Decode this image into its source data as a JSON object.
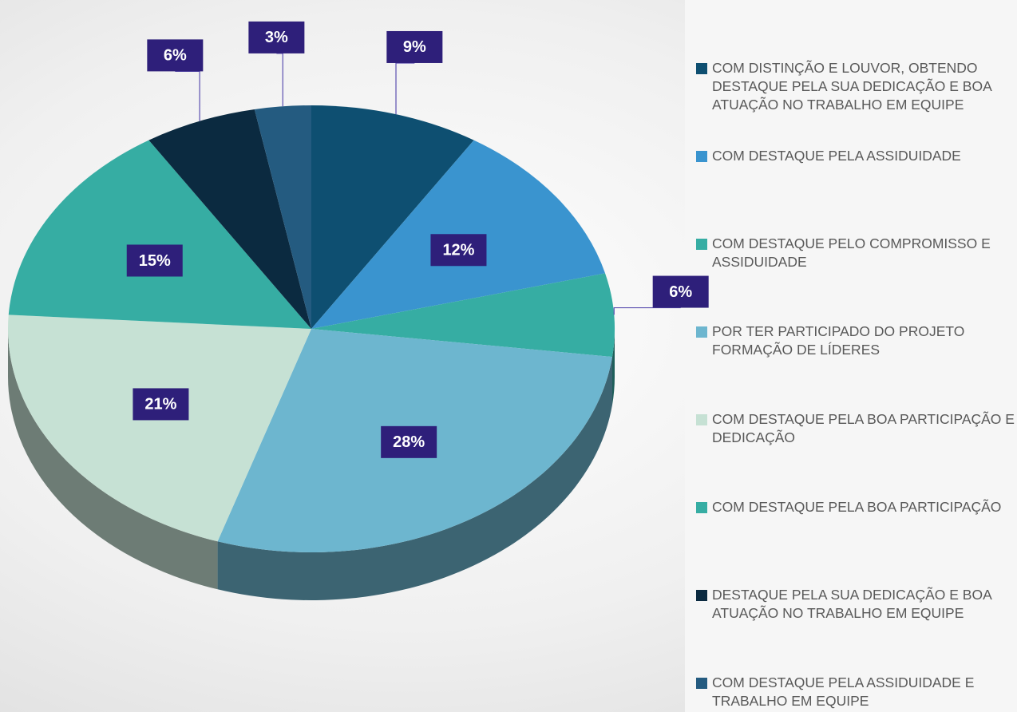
{
  "chart_data": {
    "type": "pie",
    "categories": [
      "COM DISTINÇÃO E LOUVOR, OBTENDO DESTAQUE PELA SUA DEDICAÇÃO E BOA ATUAÇÃO NO TRABALHO EM EQUIPE",
      "COM DESTAQUE PELA ASSIDUIDADE",
      "COM DESTAQUE PELO COMPROMISSO E ASSIDUIDADE",
      "POR TER PARTICIPADO DO PROJETO FORMAÇÃO DE LÍDERES",
      "COM DESTAQUE PELA BOA PARTICIPAÇÃO E DEDICAÇÃO",
      "COM DESTAQUE PELA BOA PARTICIPAÇÃO",
      "DESTAQUE PELA SUA DEDICAÇÃO E BOA ATUAÇÃO NO TRABALHO EM EQUIPE",
      "COM DESTAQUE PELA ASSIDUIDADE E TRABALHO EM EQUIPE"
    ],
    "values": [
      9,
      12,
      6,
      28,
      21,
      15,
      6,
      3
    ],
    "value_labels": [
      "9%",
      "12%",
      "6%",
      "28%",
      "21%",
      "15%",
      "6%",
      "3%"
    ],
    "colors": [
      "#0e4f71",
      "#3a94cf",
      "#36ada3",
      "#6db6cf",
      "#c6e1d4",
      "#36ada3",
      "#0b2a40",
      "#245b80"
    ],
    "legend": "right"
  }
}
